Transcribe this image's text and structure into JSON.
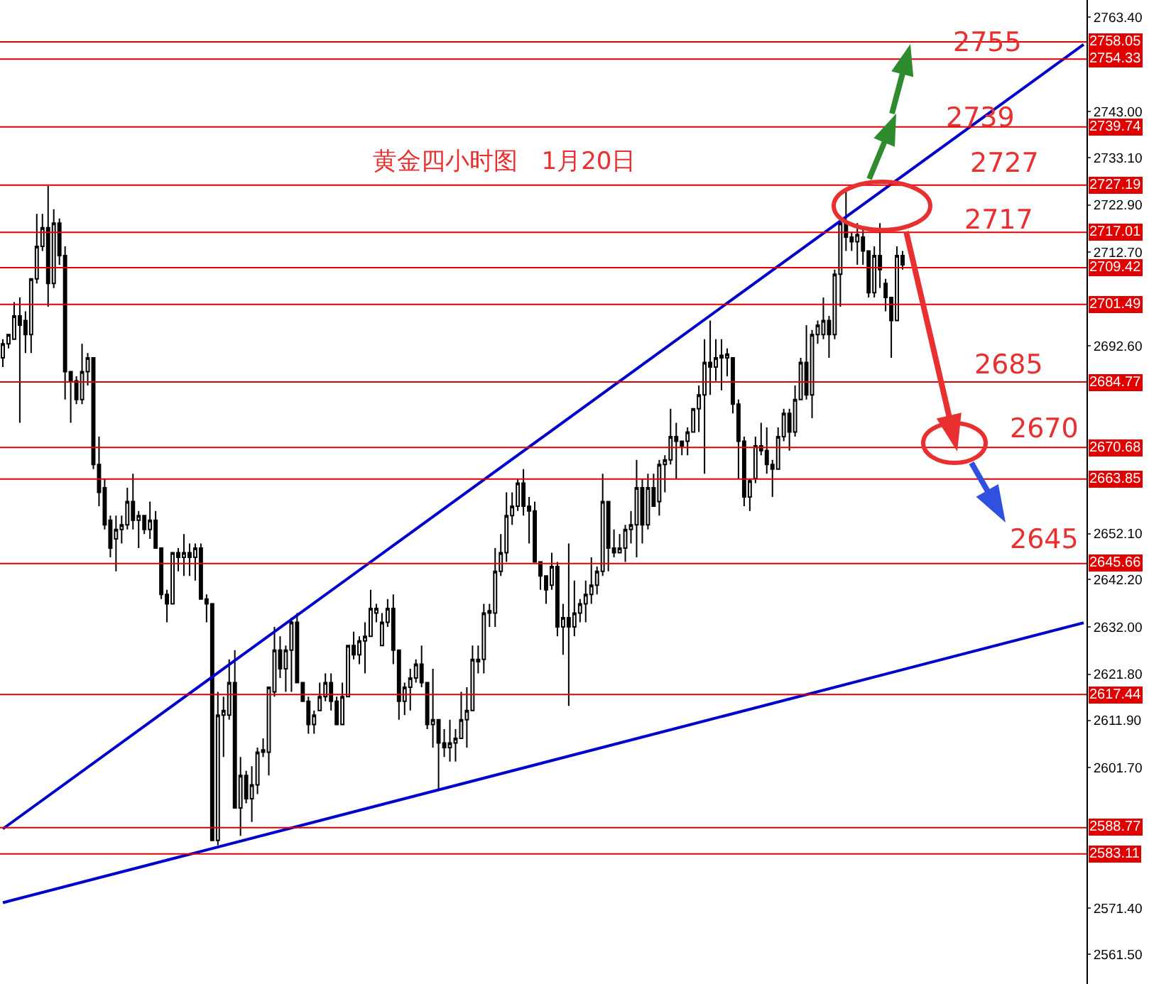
{
  "chart_data": {
    "type": "candlestick",
    "title": "黄金四小时图　1月20日",
    "color": "#000000",
    "categories": [
      null,
      null,
      null,
      null,
      null,
      null,
      null,
      null,
      null,
      null,
      null,
      null,
      null,
      null,
      null,
      null,
      null,
      null,
      null,
      null,
      null,
      null,
      null,
      null,
      null,
      null,
      null,
      null,
      null,
      null,
      null,
      null,
      null,
      null,
      null,
      null,
      null,
      null,
      null,
      null,
      null,
      null,
      null,
      null,
      null,
      null,
      null,
      null,
      null,
      null,
      null,
      null,
      null,
      null,
      null,
      null,
      null,
      null,
      null,
      null,
      null,
      null,
      null,
      null,
      null,
      null,
      null,
      null,
      null,
      null,
      null,
      null,
      null,
      null,
      null,
      null,
      null,
      null,
      null,
      null,
      null,
      null,
      null,
      null,
      null,
      null,
      null,
      null,
      null,
      null,
      null,
      null,
      null,
      null,
      null,
      null,
      null,
      null,
      null,
      null,
      null,
      null,
      null,
      null,
      null,
      null,
      null,
      null,
      null,
      null,
      null,
      null,
      null,
      null,
      null,
      null,
      null,
      null,
      null,
      null,
      null,
      null,
      null,
      null,
      null,
      null,
      null,
      null,
      null,
      null,
      null,
      null,
      null,
      null,
      null,
      null,
      null,
      null,
      null,
      null,
      null,
      null,
      null,
      null,
      null,
      null,
      null,
      null,
      null,
      null,
      null,
      null,
      null,
      null,
      null,
      null,
      null,
      null,
      null,
      null,
      null,
      null,
      null,
      null,
      null,
      null,
      null,
      null,
      null,
      null,
      null,
      null,
      null,
      null,
      null,
      null,
      null,
      null,
      null,
      null,
      null,
      null,
      null,
      null,
      null,
      null,
      null,
      null,
      null,
      null,
      null,
      null
    ],
    "ohlc": [
      [
        2690,
        2694,
        2688,
        2693
      ],
      [
        2693,
        2695,
        2692,
        2695
      ],
      [
        2694,
        2702,
        2694,
        2699
      ],
      [
        2699,
        2703,
        2676,
        2697
      ],
      [
        2698,
        2700,
        2691,
        2695
      ],
      [
        2695,
        2707,
        2691,
        2707
      ],
      [
        2707,
        2721,
        2706,
        2714
      ],
      [
        2714,
        2721,
        2713,
        2718
      ],
      [
        2718,
        2727,
        2701,
        2706
      ],
      [
        2706,
        2722,
        2705,
        2719
      ],
      [
        2719,
        2720,
        2710,
        2712
      ],
      [
        2712,
        2714,
        2681,
        2687
      ],
      [
        2687,
        2687,
        2676,
        2685
      ],
      [
        2685,
        2686,
        2680,
        2681
      ],
      [
        2681,
        2693,
        2680,
        2687
      ],
      [
        2687,
        2691,
        2684,
        2690
      ],
      [
        2690,
        2690,
        2666,
        2667
      ],
      [
        2667,
        2673,
        2658,
        2661
      ],
      [
        2662,
        2664,
        2653,
        2654
      ],
      [
        2655,
        2656,
        2647,
        2649
      ],
      [
        2651,
        2656,
        2644,
        2653
      ],
      [
        2653,
        2656,
        2650,
        2654
      ],
      [
        2654,
        2662,
        2653,
        2659
      ],
      [
        2659,
        2665,
        2653,
        2655
      ],
      [
        2655,
        2657,
        2649,
        2656
      ],
      [
        2656,
        2656,
        2652,
        2653
      ],
      [
        2653,
        2659,
        2651,
        2655
      ],
      [
        2655,
        2657,
        2649,
        2649
      ],
      [
        2649,
        2649,
        2638,
        2639
      ],
      [
        2639,
        2640,
        2633,
        2637
      ],
      [
        2637,
        2648,
        2637,
        2648
      ],
      [
        2648,
        2649,
        2644,
        2647
      ],
      [
        2647,
        2652,
        2643,
        2648
      ],
      [
        2648,
        2650,
        2643,
        2647
      ],
      [
        2647,
        2650,
        2642,
        2649
      ],
      [
        2649,
        2650,
        2638,
        2638
      ],
      [
        2638,
        2639,
        2633,
        2637
      ],
      [
        2637,
        2637,
        2586,
        2586
      ],
      [
        2586,
        2618,
        2585,
        2613
      ],
      [
        2613,
        2617,
        2604,
        2614
      ],
      [
        2613,
        2625,
        2612,
        2620
      ],
      [
        2620,
        2627,
        2593,
        2593
      ],
      [
        2593,
        2604,
        2587,
        2600
      ],
      [
        2600,
        2601,
        2594,
        2595
      ],
      [
        2595,
        2602,
        2590,
        2598
      ],
      [
        2598,
        2606,
        2596,
        2605
      ],
      [
        2605,
        2608,
        2604,
        2605.5
      ],
      [
        2605,
        2619,
        2600,
        2619
      ],
      [
        2618,
        2632,
        2617,
        2627
      ],
      [
        2627,
        2630,
        2621,
        2623
      ],
      [
        2623,
        2628,
        2618,
        2627
      ],
      [
        2627,
        2634,
        2618,
        2633
      ],
      [
        2633,
        2635,
        2620,
        2620
      ],
      [
        2620,
        2620,
        2616,
        2616
      ],
      [
        2616,
        2617,
        2609,
        2611
      ],
      [
        2611,
        2614,
        2609,
        2613
      ],
      [
        2614,
        2620,
        2614,
        2617
      ],
      [
        2617,
        2622,
        2616,
        2620
      ],
      [
        2620,
        2622,
        2614,
        2616
      ],
      [
        2616,
        2617,
        2611,
        2611
      ],
      [
        2611,
        2620,
        2611,
        2617
      ],
      [
        2617,
        2628,
        2617,
        2628
      ],
      [
        2628,
        2631,
        2625,
        2626
      ],
      [
        2626,
        2630,
        2624,
        2629
      ],
      [
        2629,
        2633,
        2622,
        2630
      ],
      [
        2630,
        2640,
        2630,
        2636
      ],
      [
        2635,
        2637,
        2633,
        2636
      ],
      [
        2628,
        2635,
        2628,
        2633
      ],
      [
        2633,
        2638,
        2632,
        2636
      ],
      [
        2636,
        2639,
        2624,
        2627
      ],
      [
        2627,
        2627,
        2612,
        2616
      ],
      [
        2616,
        2620,
        2613,
        2619
      ],
      [
        2619,
        2623,
        2614,
        2621
      ],
      [
        2621,
        2625,
        2620,
        2624
      ],
      [
        2624,
        2628,
        2619,
        2620
      ],
      [
        2620,
        2620,
        2610,
        2611
      ],
      [
        2611,
        2623,
        2606,
        2612
      ],
      [
        2612,
        2612,
        2597,
        2607
      ],
      [
        2607,
        2610,
        2604,
        2606
      ],
      [
        2606,
        2612,
        2603,
        2607
      ],
      [
        2607,
        2610,
        2603,
        2608
      ],
      [
        2608,
        2618,
        2608,
        2612
      ],
      [
        2612,
        2619,
        2606,
        2614
      ],
      [
        2614,
        2628,
        2614,
        2625
      ],
      [
        2625,
        2628,
        2622,
        2624.5
      ],
      [
        2625,
        2637,
        2622,
        2635
      ],
      [
        2635,
        2637,
        2632,
        2635.5
      ],
      [
        2635,
        2649,
        2632,
        2644
      ],
      [
        2644,
        2652,
        2643,
        2648
      ],
      [
        2648,
        2661,
        2646,
        2656
      ],
      [
        2656,
        2661,
        2654,
        2658
      ],
      [
        2658,
        2664,
        2657,
        2663
      ],
      [
        2663,
        2666,
        2656,
        2658
      ],
      [
        2658,
        2660,
        2650,
        2657
      ],
      [
        2657,
        2659,
        2646,
        2646
      ],
      [
        2646,
        2646,
        2640,
        2643
      ],
      [
        2643,
        2643,
        2637,
        2640
      ],
      [
        2641,
        2648,
        2640,
        2645
      ],
      [
        2645,
        2646,
        2630,
        2632
      ],
      [
        2632,
        2637,
        2626,
        2634
      ],
      [
        2634,
        2650,
        2615,
        2632
      ],
      [
        2632,
        2642,
        2630,
        2635
      ],
      [
        2635,
        2638,
        2633,
        2637
      ],
      [
        2637,
        2642,
        2633,
        2639
      ],
      [
        2639,
        2647,
        2637,
        2641
      ],
      [
        2641,
        2645,
        2639,
        2644
      ],
      [
        2644,
        2665,
        2643,
        2659
      ],
      [
        2659,
        2659,
        2644,
        2649
      ],
      [
        2649,
        2653,
        2647,
        2648
      ],
      [
        2648,
        2652,
        2648,
        2649
      ],
      [
        2649,
        2654,
        2646,
        2653
      ],
      [
        2653,
        2657,
        2650,
        2654
      ],
      [
        2654,
        2668,
        2647,
        2662
      ],
      [
        2662,
        2664,
        2650,
        2654
      ],
      [
        2654,
        2665,
        2653,
        2662
      ],
      [
        2662,
        2665,
        2658,
        2658
      ],
      [
        2659,
        2668,
        2656,
        2667
      ],
      [
        2667,
        2669,
        2661,
        2668
      ],
      [
        2668,
        2679,
        2667,
        2673
      ],
      [
        2673,
        2676,
        2664,
        2672
      ],
      [
        2672,
        2672,
        2669,
        2671
      ],
      [
        2672,
        2675,
        2669,
        2674
      ],
      [
        2674,
        2679,
        2674,
        2679
      ],
      [
        2679,
        2684,
        2674,
        2682
      ],
      [
        2682,
        2694,
        2665,
        2689
      ],
      [
        2689,
        2698,
        2682,
        2688
      ],
      [
        2688,
        2694,
        2685,
        2690
      ],
      [
        2690,
        2694,
        2683,
        2690.5
      ],
      [
        2690,
        2692,
        2686,
        2690.8
      ],
      [
        2690,
        2690,
        2678,
        2680
      ],
      [
        2680,
        2681,
        2664,
        2672
      ],
      [
        2672,
        2673,
        2658,
        2660
      ],
      [
        2660,
        2664,
        2657,
        2663.5
      ],
      [
        2664,
        2673,
        2663,
        2671
      ],
      [
        2671,
        2676,
        2669,
        2670
      ],
      [
        2670,
        2675,
        2665,
        2667
      ],
      [
        2667,
        2668,
        2660,
        2666
      ],
      [
        2666,
        2675,
        2666,
        2673
      ],
      [
        2673,
        2679,
        2672,
        2678
      ],
      [
        2678,
        2679,
        2670,
        2674
      ],
      [
        2674,
        2684,
        2673,
        2681
      ],
      [
        2681,
        2690,
        2681,
        2689
      ],
      [
        2689,
        2697,
        2681,
        2682
      ],
      [
        2682,
        2696,
        2677,
        2695
      ],
      [
        2695,
        2698,
        2693,
        2697
      ],
      [
        2695,
        2703,
        2694,
        2698
      ],
      [
        2698,
        2699,
        2690,
        2695
      ],
      [
        2695,
        2709,
        2694,
        2708
      ],
      [
        2708,
        2720,
        2701,
        2719
      ],
      [
        2719,
        2726,
        2713,
        2716
      ],
      [
        2716,
        2717,
        2713,
        2715
      ],
      [
        2715,
        2719,
        2710,
        2716.5
      ],
      [
        2716,
        2718,
        2710,
        2713
      ],
      [
        2713,
        2713,
        2703,
        2704
      ],
      [
        2704,
        2714,
        2703,
        2712
      ],
      [
        2712,
        2719,
        2705,
        2709
      ],
      [
        2706,
        2707,
        2700,
        2703
      ],
      [
        2703,
        2703,
        2690,
        2698
      ],
      [
        2698,
        2714,
        2698,
        2712
      ],
      [
        2712,
        2713,
        2709,
        2710
      ],
      null,
      null,
      null,
      null,
      null,
      null,
      null,
      null,
      null,
      null,
      null,
      null,
      null,
      null,
      null,
      null,
      null,
      null,
      null,
      null,
      null,
      null,
      null,
      null,
      null,
      null,
      null,
      null,
      null,
      null,
      null,
      null
    ],
    "ylim": [
      2555.08,
      2767.07
    ],
    "yticks": [
      {
        "value": 2763.4,
        "label": "2763.40"
      },
      {
        "value": 2743,
        "label": "2743.00"
      },
      {
        "value": 2733.1,
        "label": "2733.10"
      },
      {
        "value": 2722.9,
        "label": "2722.90"
      },
      {
        "value": 2712.7,
        "label": "2712.70"
      },
      {
        "value": 2692.6,
        "label": "2692.60"
      },
      {
        "value": 2652.1,
        "label": "2652.10"
      },
      {
        "value": 2642.2,
        "label": "2642.20"
      },
      {
        "value": 2632,
        "label": "2632.00"
      },
      {
        "value": 2621.8,
        "label": "2621.80"
      },
      {
        "value": 2611.9,
        "label": "2611.90"
      },
      {
        "value": 2601.7,
        "label": "2601.70"
      },
      {
        "value": 2571.4,
        "label": "2571.40"
      },
      {
        "value": 2561.5,
        "label": "2561.50"
      }
    ],
    "tick_labels": "y",
    "series": [
      {
        "type": "line",
        "color": "#0000cc",
        "values": [
          2588.5,
          null,
          null,
          null,
          null,
          null,
          null,
          null,
          null,
          null,
          null,
          null,
          null,
          null,
          null,
          null,
          null,
          null,
          null,
          null,
          null,
          null,
          null,
          null,
          null,
          null,
          null,
          null,
          null,
          null,
          null,
          null,
          null,
          null,
          null,
          null,
          null,
          null,
          null,
          null,
          null,
          null,
          null,
          null,
          null,
          null,
          null,
          null,
          null,
          null,
          null,
          null,
          null,
          null,
          null,
          null,
          null,
          null,
          null,
          null,
          null,
          null,
          null,
          null,
          null,
          null,
          null,
          null,
          null,
          null,
          null,
          null,
          null,
          null,
          null,
          null,
          null,
          null,
          null,
          null,
          null,
          null,
          null,
          null,
          null,
          null,
          null,
          null,
          null,
          null,
          null,
          null,
          null,
          null,
          null,
          null,
          null,
          null,
          null,
          null,
          null,
          null,
          null,
          null,
          null,
          null,
          null,
          null,
          null,
          null,
          null,
          null,
          null,
          null,
          null,
          null,
          null,
          null,
          null,
          null,
          null,
          null,
          null,
          null,
          null,
          null,
          null,
          null,
          null,
          null,
          null,
          null,
          null,
          null,
          null,
          null,
          null,
          null,
          null,
          null,
          null,
          null,
          null,
          null,
          null,
          null,
          null,
          null,
          null,
          null,
          null,
          null,
          null,
          null,
          null,
          null,
          null,
          null,
          null,
          null,
          null,
          null,
          null,
          null,
          null,
          null,
          null,
          null,
          null,
          null,
          null,
          null,
          null,
          null,
          null,
          null,
          null,
          null,
          null,
          null,
          null,
          null,
          null,
          null,
          null,
          null,
          null,
          null,
          null,
          null,
          null,
          2757.5
        ]
      },
      {
        "type": "line",
        "color": "#0000cc",
        "values": [
          2572.6,
          null,
          null,
          null,
          null,
          null,
          null,
          null,
          null,
          null,
          null,
          null,
          null,
          null,
          null,
          null,
          null,
          null,
          null,
          null,
          null,
          null,
          null,
          null,
          null,
          null,
          null,
          null,
          null,
          null,
          null,
          null,
          null,
          null,
          null,
          null,
          null,
          null,
          null,
          null,
          null,
          null,
          null,
          null,
          null,
          null,
          null,
          null,
          null,
          null,
          null,
          null,
          null,
          null,
          null,
          null,
          null,
          null,
          null,
          null,
          null,
          null,
          null,
          null,
          null,
          null,
          null,
          null,
          null,
          null,
          null,
          null,
          null,
          null,
          null,
          null,
          null,
          null,
          null,
          null,
          null,
          null,
          null,
          null,
          null,
          null,
          null,
          null,
          null,
          null,
          null,
          null,
          null,
          null,
          null,
          null,
          null,
          null,
          null,
          null,
          null,
          null,
          null,
          null,
          null,
          null,
          null,
          null,
          null,
          null,
          null,
          null,
          null,
          null,
          null,
          null,
          null,
          null,
          null,
          null,
          null,
          null,
          null,
          null,
          null,
          null,
          null,
          null,
          null,
          null,
          null,
          null,
          null,
          null,
          null,
          null,
          null,
          null,
          null,
          null,
          null,
          null,
          null,
          null,
          null,
          null,
          null,
          null,
          null,
          null,
          null,
          null,
          null,
          null,
          null,
          null,
          null,
          null,
          null,
          null,
          null,
          null,
          null,
          null,
          null,
          null,
          null,
          null,
          null,
          null,
          null,
          null,
          null,
          null,
          null,
          null,
          null,
          null,
          null,
          null,
          null,
          null,
          null,
          null,
          null,
          null,
          null,
          null,
          null,
          null,
          null,
          2632.9
        ]
      }
    ],
    "ref_lines": [
      {
        "axis": "y",
        "value": 2758.05,
        "label": "2758.05",
        "color": "#e00000"
      },
      {
        "axis": "y",
        "value": 2754.33,
        "label": "2754.33",
        "color": "#e00000"
      },
      {
        "axis": "y",
        "value": 2739.74,
        "label": "2739.74",
        "color": "#e00000"
      },
      {
        "axis": "y",
        "value": 2727.19,
        "label": "2727.19",
        "color": "#e00000"
      },
      {
        "axis": "y",
        "value": 2717.01,
        "label": "2717.01",
        "color": "#e00000"
      },
      {
        "axis": "y",
        "value": 2709.42,
        "label": "2709.42",
        "color": "#e00000"
      },
      {
        "axis": "y",
        "value": 2701.49,
        "label": "2701.49",
        "color": "#e00000"
      },
      {
        "axis": "y",
        "value": 2684.77,
        "label": "2684.77",
        "color": "#e00000"
      },
      {
        "axis": "y",
        "value": 2670.68,
        "label": "2670.68",
        "color": "#e00000"
      },
      {
        "axis": "y",
        "value": 2663.85,
        "label": "2663.85",
        "color": "#e00000"
      },
      {
        "axis": "y",
        "value": 2645.66,
        "label": "2645.66",
        "color": "#e00000"
      },
      {
        "axis": "y",
        "value": 2617.44,
        "label": "2617.44",
        "color": "#e00000"
      },
      {
        "axis": "y",
        "value": 2588.77,
        "label": "2588.77",
        "color": "#e00000"
      },
      {
        "axis": "y",
        "value": 2583.11,
        "label": "2583.11",
        "color": "#e00000"
      }
    ],
    "annotations": [
      "2755",
      "2739",
      "2727",
      "2717",
      "2685",
      "2670",
      "2645"
    ]
  }
}
